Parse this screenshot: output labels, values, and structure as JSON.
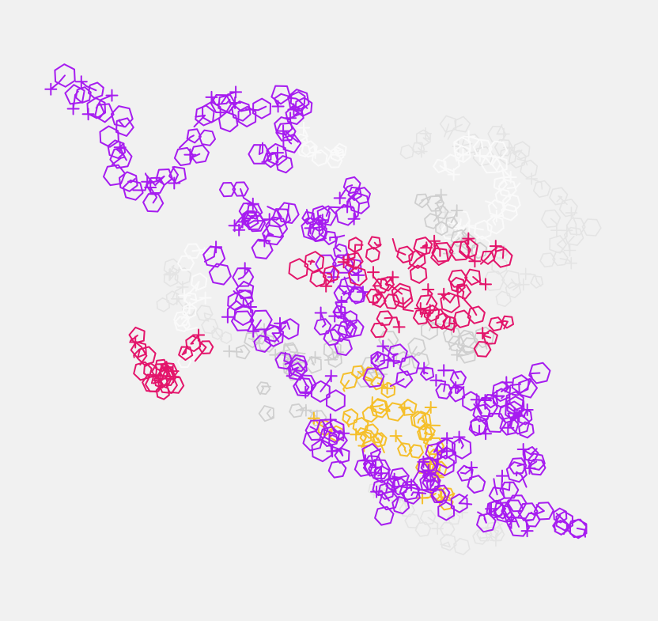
{
  "viewer": {
    "background": "#f1f1f1",
    "representation": "wireframe"
  },
  "colors": {
    "purple": "#a61cf0",
    "magenta": "#e3156b",
    "yellow": "#f5bf2a",
    "lightgray": "#cfcfcf",
    "faintgray": "#e4e4e4",
    "white": "#fafafa"
  },
  "chains": [
    {
      "name": "purple-strand",
      "color_key": "purple"
    },
    {
      "name": "magenta-strand",
      "color_key": "magenta"
    },
    {
      "name": "yellow-ligand",
      "color_key": "yellow"
    },
    {
      "name": "gray-strand",
      "color_key": "lightgray"
    },
    {
      "name": "faint-strand",
      "color_key": "faintgray"
    },
    {
      "name": "white-strand",
      "color_key": "white"
    }
  ]
}
